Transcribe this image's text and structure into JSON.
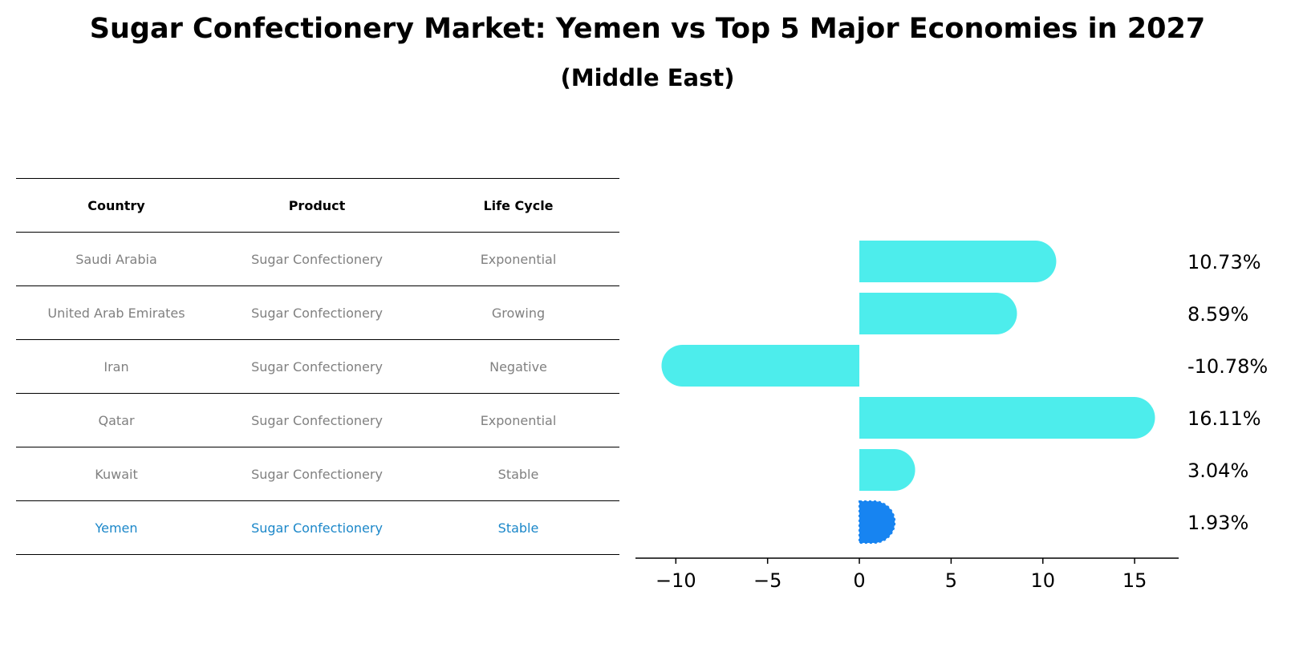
{
  "title": "Sugar Confectionery Market: Yemen vs Top 5 Major Economies in 2027",
  "subtitle": "(Middle East)",
  "table": {
    "headers": [
      "Country",
      "Product",
      "Life Cycle"
    ],
    "rows": [
      [
        "Saudi Arabia",
        "Sugar Confectionery",
        "Exponential"
      ],
      [
        "United Arab Emirates",
        "Sugar Confectionery",
        "Growing"
      ],
      [
        "Iran",
        "Sugar Confectionery",
        "Negative"
      ],
      [
        "Qatar",
        "Sugar Confectionery",
        "Exponential"
      ],
      [
        "Kuwait",
        "Sugar Confectionery",
        "Stable"
      ],
      [
        "Yemen",
        "Sugar Confectionery",
        "Stable"
      ]
    ]
  },
  "chart_data": {
    "type": "bar",
    "orientation": "horizontal",
    "categories": [
      "Saudi Arabia",
      "United Arab Emirates",
      "Iran",
      "Qatar",
      "Kuwait",
      "Yemen"
    ],
    "values": [
      10.73,
      8.59,
      -10.78,
      16.11,
      3.04,
      1.93
    ],
    "value_labels": [
      "10.73%",
      "8.59%",
      "-10.78%",
      "16.11%",
      "3.04%",
      "1.93%"
    ],
    "xlim": [
      -12.2,
      17.4
    ],
    "xticks": [
      -10,
      -5,
      0,
      5,
      10,
      15
    ],
    "xtick_labels": [
      "−10",
      "−5",
      "0",
      "5",
      "10",
      "15"
    ],
    "highlight": "Yemen",
    "colors": {
      "bar": "#4dedec",
      "highlight": "#1784f1",
      "highlight_text": "#1b87c9"
    }
  }
}
